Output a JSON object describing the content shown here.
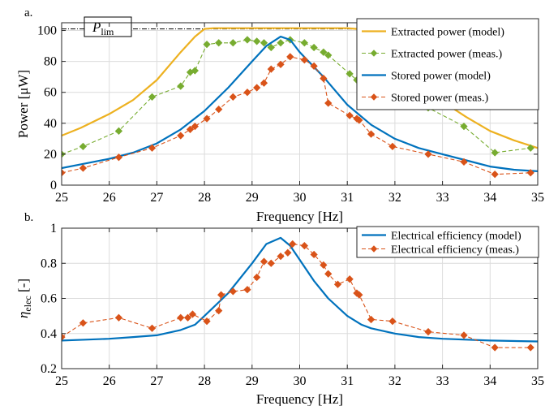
{
  "chart_data": [
    {
      "type": "line",
      "panel_label": "a.",
      "title": "",
      "xlabel": "Frequency [Hz]",
      "ylabel": "Power [μW]",
      "xlim": [
        25,
        35
      ],
      "ylim": [
        0,
        105
      ],
      "xticks": [
        25,
        26,
        27,
        28,
        29,
        30,
        31,
        32,
        33,
        34,
        35
      ],
      "yticks": [
        0,
        20,
        40,
        60,
        80,
        100
      ],
      "grid": true,
      "legend_position": "top-right",
      "annotation": {
        "base": "P",
        "sub": "lim",
        "value": 101
      },
      "series": [
        {
          "name": "Extracted power (model)",
          "color": "#EDB120",
          "style": "solid",
          "marker": "none",
          "x": [
            25,
            25.4,
            26,
            26.5,
            27,
            27.5,
            27.8,
            28,
            28.2,
            29,
            29.5,
            30,
            30.5,
            31,
            31.2,
            31.5,
            32,
            32.5,
            33,
            33.5,
            34,
            34.5,
            35
          ],
          "y": [
            32,
            37,
            46,
            55,
            68,
            86,
            96,
            101,
            101.5,
            101.5,
            101.5,
            101.5,
            101.5,
            101.5,
            101,
            94,
            80,
            66,
            54,
            44,
            35,
            29,
            24
          ]
        },
        {
          "name": "Extracted power (meas.)",
          "color": "#77AC30",
          "style": "dashed",
          "marker": "diamond",
          "x": [
            25,
            25.45,
            26.2,
            26.9,
            27.5,
            27.7,
            27.8,
            28.05,
            28.3,
            28.6,
            28.9,
            29.1,
            29.25,
            29.4,
            29.6,
            29.8,
            30.1,
            30.3,
            30.5,
            30.6,
            31.05,
            31.2,
            31.25,
            31.5,
            31.95,
            32.7,
            33.45,
            34.1,
            34.85
          ],
          "y": [
            20,
            25,
            35,
            57,
            64,
            73,
            74,
            91,
            92,
            92,
            94,
            93,
            92,
            89,
            92,
            94,
            92,
            89,
            86,
            84,
            72,
            68,
            69,
            68,
            55,
            50,
            38,
            21,
            24
          ]
        },
        {
          "name": "Stored power (model)",
          "color": "#0072BD",
          "style": "solid",
          "marker": "none",
          "x": [
            25,
            25.5,
            26,
            26.5,
            27,
            27.5,
            28,
            28.5,
            29,
            29.3,
            29.6,
            29.8,
            30,
            30.5,
            31,
            31.5,
            32,
            32.5,
            33,
            33.5,
            34,
            34.5,
            35
          ],
          "y": [
            11,
            14,
            17,
            21,
            27,
            36,
            48,
            63,
            80,
            90,
            96,
            94,
            86,
            70,
            52,
            39,
            30,
            24,
            20,
            16,
            12,
            10,
            9
          ]
        },
        {
          "name": "Stored power (meas.)",
          "color": "#D95319",
          "style": "dashed",
          "marker": "diamond",
          "x": [
            25,
            25.45,
            26.2,
            26.9,
            27.5,
            27.7,
            27.8,
            28.05,
            28.3,
            28.6,
            28.9,
            29.1,
            29.25,
            29.4,
            29.6,
            29.8,
            30.1,
            30.3,
            30.5,
            30.6,
            31.05,
            31.2,
            31.25,
            31.5,
            31.95,
            32.7,
            33.45,
            34.1,
            34.85
          ],
          "y": [
            8,
            11,
            18,
            24,
            32,
            36,
            38,
            43,
            49,
            57,
            60,
            63,
            66,
            75,
            78,
            83,
            81,
            77,
            69,
            53,
            45,
            43,
            42,
            33,
            25,
            20,
            15,
            7,
            8
          ]
        }
      ]
    },
    {
      "type": "line",
      "panel_label": "b.",
      "title": "",
      "xlabel": "Frequency [Hz]",
      "ylabel": "ηelec [-]",
      "ylabel_base": "η",
      "ylabel_sub": "elec",
      "ylabel_unit": "[-]",
      "xlim": [
        25,
        35
      ],
      "ylim": [
        0.2,
        1.0
      ],
      "xticks": [
        25,
        26,
        27,
        28,
        29,
        30,
        31,
        32,
        33,
        34,
        35
      ],
      "yticks": [
        0.2,
        0.4,
        0.6,
        0.8,
        1
      ],
      "grid": true,
      "legend_position": "top-right",
      "series": [
        {
          "name": "Electrical efficiency (model)",
          "color": "#0072BD",
          "style": "solid",
          "marker": "none",
          "x": [
            25,
            25.5,
            26,
            26.5,
            27,
            27.5,
            27.8,
            28,
            28.5,
            29,
            29.3,
            29.6,
            29.8,
            30,
            30.3,
            30.6,
            31,
            31.3,
            31.5,
            32,
            32.5,
            33,
            34,
            35
          ],
          "y": [
            0.36,
            0.365,
            0.37,
            0.38,
            0.39,
            0.42,
            0.45,
            0.5,
            0.63,
            0.8,
            0.91,
            0.945,
            0.9,
            0.82,
            0.7,
            0.6,
            0.5,
            0.45,
            0.43,
            0.4,
            0.38,
            0.37,
            0.36,
            0.355
          ]
        },
        {
          "name": "Electrical efficiency (meas.)",
          "color": "#D95319",
          "style": "dashed",
          "marker": "diamond",
          "x": [
            25,
            25.45,
            26.2,
            26.9,
            27.5,
            27.65,
            27.75,
            28.05,
            28.3,
            28.35,
            28.6,
            28.9,
            29.1,
            29.25,
            29.4,
            29.6,
            29.75,
            29.85,
            30.1,
            30.3,
            30.5,
            30.6,
            30.8,
            31.05,
            31.2,
            31.25,
            31.5,
            31.95,
            32.7,
            33.45,
            34.1,
            34.85
          ],
          "y": [
            0.38,
            0.46,
            0.49,
            0.43,
            0.49,
            0.49,
            0.51,
            0.47,
            0.53,
            0.62,
            0.64,
            0.65,
            0.72,
            0.81,
            0.8,
            0.84,
            0.86,
            0.91,
            0.9,
            0.85,
            0.79,
            0.74,
            0.68,
            0.71,
            0.63,
            0.62,
            0.48,
            0.47,
            0.41,
            0.39,
            0.32,
            0.32
          ]
        }
      ]
    }
  ]
}
